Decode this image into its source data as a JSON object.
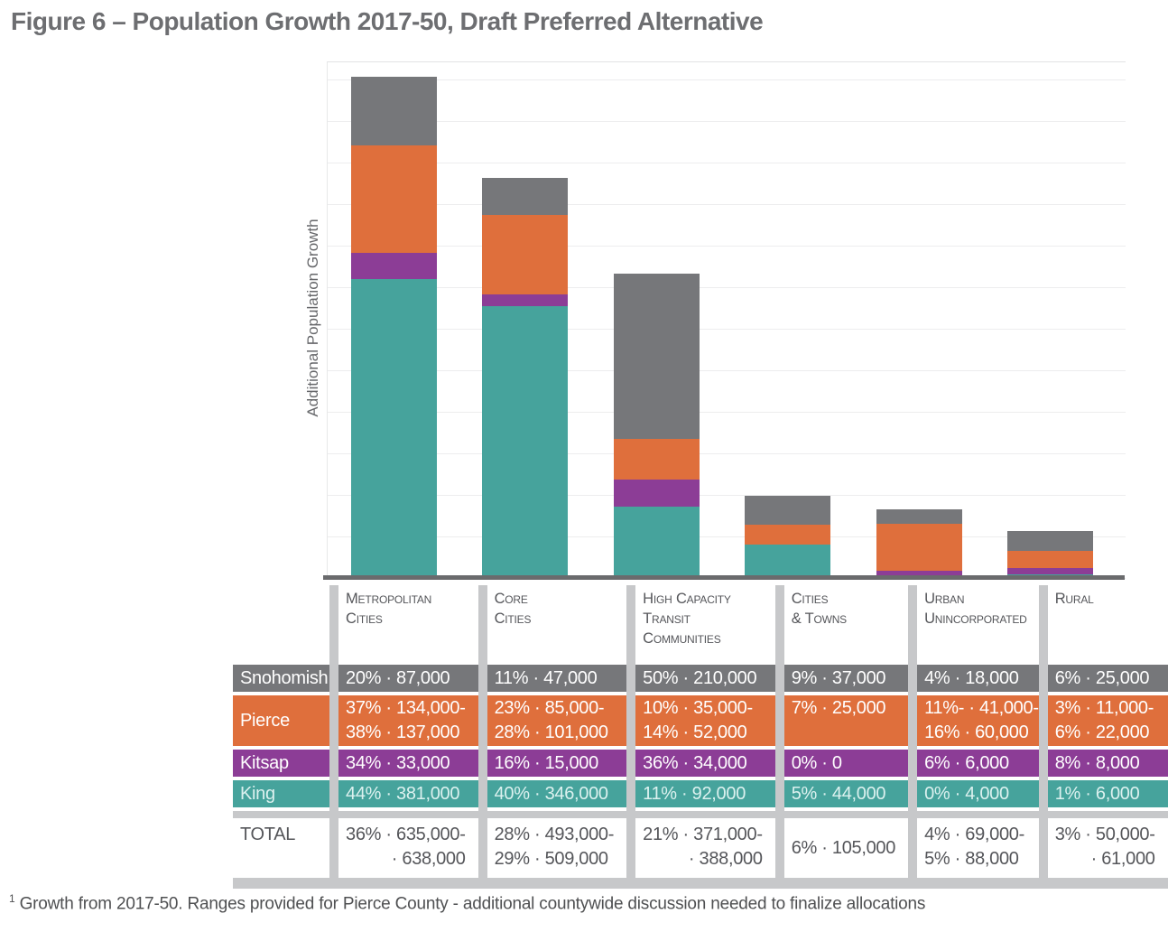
{
  "title": "Figure 6 – Population Growth 2017-50, Draft Preferred Alternative",
  "chart_data": {
    "type": "bar",
    "stacked": true,
    "title": "Figure 6 – Population Growth 2017-50, Draft Preferred Alternative",
    "ylabel": "Additional Population Growth",
    "xlabel": "",
    "grid": "horizontal",
    "legend_position": "table below chart (row colors serve as legend)",
    "units": "people (values in thousands)",
    "categories": [
      "Metropolitan Cities",
      "Core Cities",
      "High Capacity Transit Communities",
      "Cities & Towns",
      "Urban Unincorporated",
      "Rural"
    ],
    "series": [
      {
        "name": "King",
        "color": "#46A39C",
        "values_thousands": [
          381,
          346,
          92,
          44,
          4,
          6
        ]
      },
      {
        "name": "Kitsap",
        "color": "#8C3D96",
        "values_thousands": [
          33,
          15,
          34,
          0,
          6,
          8
        ]
      },
      {
        "name": "Pierce",
        "color": "#DF6F3C",
        "values_thousands": [
          137,
          101,
          52,
          25,
          60,
          22
        ]
      },
      {
        "name": "Snohomish",
        "color": "#76777A",
        "values_thousands": [
          87,
          47,
          210,
          37,
          18,
          25
        ]
      }
    ],
    "note": "Pierce County segments plotted at upper end of its range; stacking order bottom-to-top is King, Kitsap, Pierce, Snohomish"
  },
  "table": {
    "column_headers": [
      [
        "Metropolitan",
        "Cities"
      ],
      [
        "Core",
        "Cities"
      ],
      [
        "High Capacity",
        "Transit",
        "Communities"
      ],
      [
        "Cities",
        "& Towns"
      ],
      [
        "Urban",
        "Unincorporated"
      ],
      [
        "Rural"
      ]
    ],
    "rows": [
      {
        "label": "Snohomish",
        "color": "#76777A",
        "text_color": "#FFFFFF",
        "cells": [
          [
            "20% · 87,000"
          ],
          [
            "11% · 47,000"
          ],
          [
            "50% · 210,000"
          ],
          [
            "9% · 37,000"
          ],
          [
            "4% · 18,000"
          ],
          [
            "6% · 25,000"
          ]
        ]
      },
      {
        "label": "Pierce",
        "color": "#DF6F3C",
        "text_color": "#FFFFFF",
        "cells": [
          [
            "37% · 134,000-",
            "38% · 137,000"
          ],
          [
            "23% · 85,000-",
            "28% · 101,000"
          ],
          [
            "10% · 35,000-",
            "14% · 52,000"
          ],
          [
            "7% · 25,000"
          ],
          [
            "11%- · 41,000-",
            "16% · 60,000"
          ],
          [
            "3% · 11,000-",
            "6% · 22,000"
          ]
        ]
      },
      {
        "label": "Kitsap",
        "color": "#8C3D96",
        "text_color": "#FFFFFF",
        "cells": [
          [
            "34% · 33,000"
          ],
          [
            "16% · 15,000"
          ],
          [
            "36% · 34,000"
          ],
          [
            "0% · 0"
          ],
          [
            "6% · 6,000"
          ],
          [
            "8% · 8,000"
          ]
        ]
      },
      {
        "label": "King",
        "color": "#46A39C",
        "text_color": "#DCF1EF",
        "cells": [
          [
            "44% · 381,000"
          ],
          [
            "40% · 346,000"
          ],
          [
            "11% · 92,000"
          ],
          [
            "5% · 44,000"
          ],
          [
            "0% · 4,000"
          ],
          [
            "1% · 6,000"
          ]
        ]
      }
    ],
    "total_row": {
      "label": "TOTAL",
      "cells": [
        {
          "lines": [
            "36% · 635,000-",
            "· 638,000"
          ],
          "second_line_align": "right"
        },
        {
          "lines": [
            "28% · 493,000-",
            "29% · 509,000"
          ],
          "second_line_align": "left"
        },
        {
          "lines": [
            "21% · 371,000-",
            "· 388,000"
          ],
          "second_line_align": "right"
        },
        {
          "lines": [
            "6% · 105,000"
          ]
        },
        {
          "lines": [
            "4% · 69,000-",
            "5% · 88,000"
          ],
          "second_line_align": "left"
        },
        {
          "lines": [
            "3% · 50,000-",
            "· 61,000"
          ],
          "second_line_align": "right"
        }
      ]
    }
  },
  "footnote": {
    "marker": "1",
    "text": "Growth from 2017-50. Ranges provided for Pierce County - additional countywide discussion needed to finalize allocations"
  },
  "colors": {
    "title_text": "#6D6E71",
    "axis_line": "#6A6B6D",
    "gridline": "#EDEDEE",
    "gutter": "#C7C8CA",
    "header_text": "#55565A",
    "total_text": "#55565A",
    "king_teal": "#46A39C",
    "kitsap_purple": "#8C3D96",
    "pierce_orange": "#DF6F3C",
    "snohomish_gray": "#76777A"
  }
}
